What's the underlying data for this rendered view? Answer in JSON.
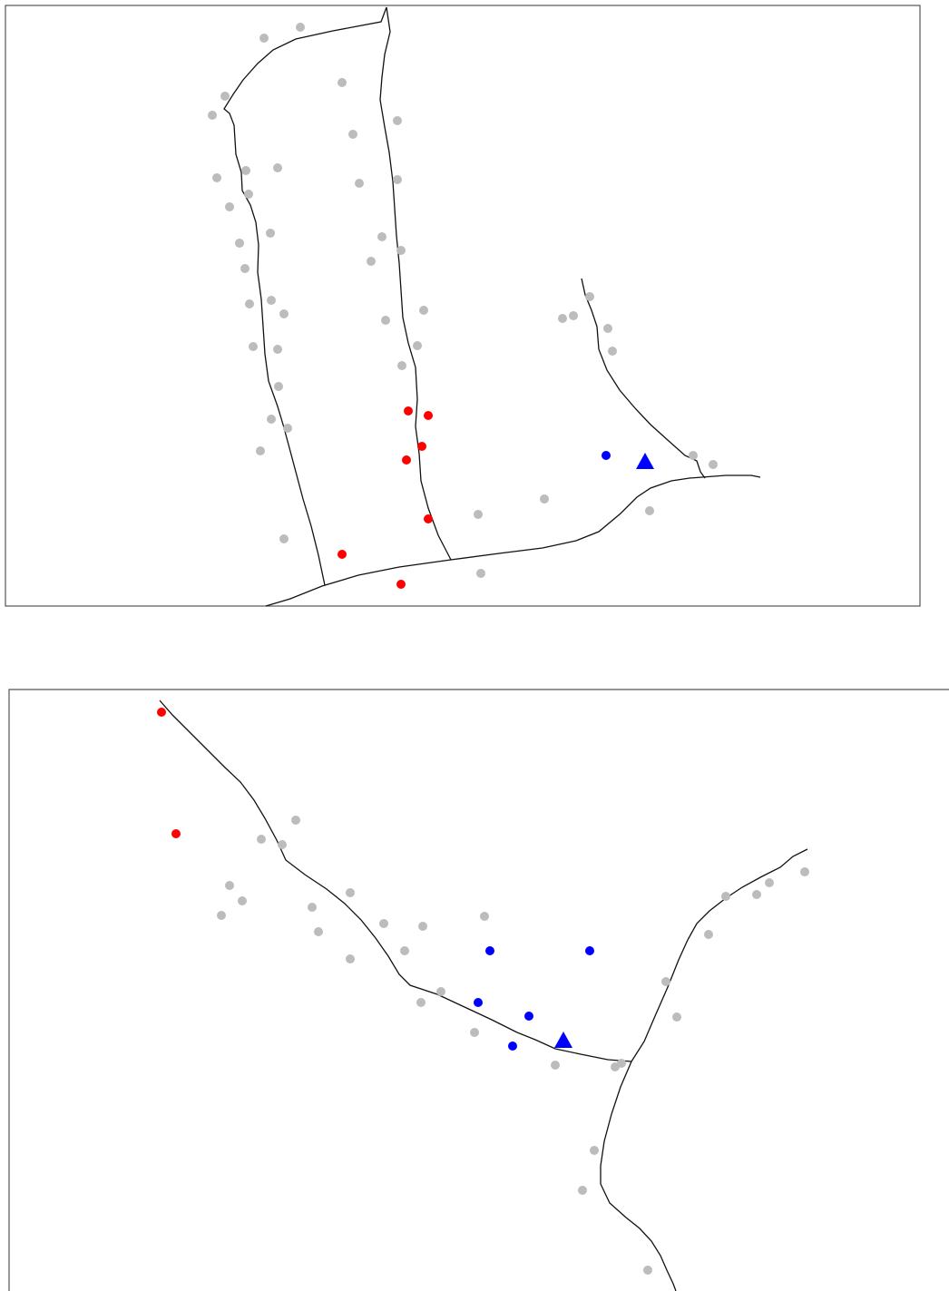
{
  "colors": {
    "background": "#ffffff",
    "frame": "#555555",
    "stream": "#111111",
    "other_site": "#bcbcbc",
    "site_group_a": "#ff0000",
    "site_group_b": "#0000ff",
    "reference_marker": "#0000ff"
  },
  "symbols": {
    "point": "filled-circle",
    "reference": "filled-triangle"
  },
  "maps": [
    {
      "id": "top",
      "legend": "none",
      "axes": "none"
    },
    {
      "id": "bottom",
      "legend": "none",
      "axes": "none"
    }
  ]
}
